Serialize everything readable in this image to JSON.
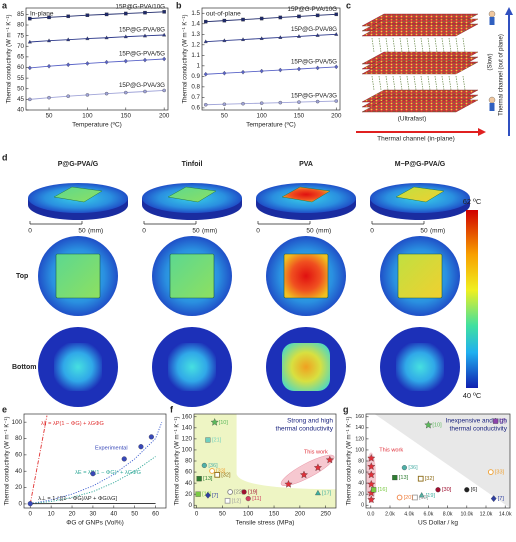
{
  "chart_data": [
    {
      "type": "line",
      "panel_label": "a",
      "annotation": "In-plane",
      "xlabel": "Temperature (ºC)",
      "ylabel": "Thermal conductivity (W m⁻¹ K⁻¹)",
      "x": [
        25,
        50,
        75,
        100,
        125,
        150,
        175,
        200
      ],
      "xlim": [
        20,
        205
      ],
      "xticks": [
        50,
        100,
        150,
        200
      ],
      "ylim": [
        40,
        88
      ],
      "yticks": [
        40,
        45,
        50,
        55,
        60,
        65,
        70,
        75,
        80,
        85
      ],
      "series": [
        {
          "name": "15P@G-PVA/10G",
          "color": "#1f2a6b",
          "marker": "square",
          "values": [
            83.0,
            83.6,
            84.1,
            84.6,
            85.0,
            85.4,
            85.8,
            86.2
          ]
        },
        {
          "name": "15P@G-PVA/8G",
          "color": "#2e3a8c",
          "marker": "triangle",
          "values": [
            72.0,
            72.6,
            73.1,
            73.6,
            74.0,
            74.5,
            74.9,
            75.3
          ]
        },
        {
          "name": "15P@G-PVA/5G",
          "color": "#5a64c8",
          "marker": "diamond",
          "values": [
            59.8,
            60.6,
            61.3,
            61.9,
            62.5,
            63.0,
            63.5,
            64.0
          ]
        },
        {
          "name": "15P@G-PVA/3G",
          "color": "#a0a4d8",
          "marker": "circle",
          "values": [
            45.0,
            45.8,
            46.5,
            47.1,
            47.7,
            48.2,
            48.7,
            49.2
          ]
        }
      ]
    },
    {
      "type": "line",
      "panel_label": "b",
      "annotation": "out-of-plane",
      "xlabel": "Temperature (ºC)",
      "ylabel": "Thermal conductivity (W m⁻¹ K⁻¹)",
      "x": [
        25,
        50,
        75,
        100,
        125,
        150,
        175,
        200
      ],
      "xlim": [
        20,
        205
      ],
      "xticks": [
        50,
        100,
        150,
        200
      ],
      "ylim": [
        0.58,
        1.55
      ],
      "yticks": [
        0.6,
        0.7,
        0.8,
        0.9,
        1.0,
        1.1,
        1.2,
        1.3,
        1.4,
        1.5
      ],
      "series": [
        {
          "name": "15P@G-PVA/10G",
          "color": "#1f2a6b",
          "marker": "square",
          "values": [
            1.42,
            1.43,
            1.44,
            1.45,
            1.46,
            1.47,
            1.48,
            1.49
          ]
        },
        {
          "name": "15P@G-PVA/8G",
          "color": "#2e3a8c",
          "marker": "triangle",
          "values": [
            1.23,
            1.24,
            1.25,
            1.26,
            1.27,
            1.28,
            1.29,
            1.3
          ]
        },
        {
          "name": "15P@G-PVA/5G",
          "color": "#5a64c8",
          "marker": "diamond",
          "values": [
            0.92,
            0.93,
            0.94,
            0.95,
            0.96,
            0.97,
            0.98,
            0.99
          ]
        },
        {
          "name": "15P@G-PVA/3G",
          "color": "#a0a4d8",
          "marker": "circle",
          "values": [
            0.63,
            0.635,
            0.64,
            0.645,
            0.65,
            0.655,
            0.66,
            0.665
          ]
        }
      ]
    },
    {
      "type": "scatter",
      "panel_label": "e",
      "xlabel": "ΦG of GNPs (Vol%)",
      "ylabel": "Thermal conductivity (W m⁻¹ K⁻¹)",
      "xlim": [
        -3,
        65
      ],
      "xticks": [
        0,
        10,
        20,
        30,
        40,
        50,
        60
      ],
      "ylim": [
        -5,
        110
      ],
      "yticks": [
        0,
        20,
        40,
        60,
        80,
        100
      ],
      "series": [
        {
          "name": "λ∥ = λP(1 − ΦG) + λGΦG",
          "color": "#e03030",
          "style": "dashdot",
          "x": [
            0,
            8
          ],
          "values": [
            0.3,
            108
          ]
        },
        {
          "color": "#4060d0",
          "style": "dotted",
          "x": [
            0,
            10,
            20,
            30,
            40,
            50,
            60,
            63
          ],
          "values": [
            0.3,
            5,
            12,
            22,
            36,
            55,
            80,
            100
          ]
        },
        {
          "name": "λE = λP(1 − ΦG)ⁿ + λGΦG",
          "color": "#30a898",
          "style": "dotted",
          "x": [
            0,
            10,
            20,
            30,
            40,
            50,
            60
          ],
          "values": [
            0.3,
            3,
            8,
            15,
            26,
            40,
            58
          ]
        },
        {
          "name": "λ⊥ = 1 / [(1 − ΦG)/λP + ΦG/λG]",
          "color": "#222222",
          "style": "solid",
          "x": [
            0,
            60
          ],
          "values": [
            0.3,
            0.6
          ]
        },
        {
          "name": "Experimental",
          "color": "#3848b8",
          "style": "markers",
          "marker": "circle",
          "x": [
            0,
            30,
            45,
            53,
            58
          ],
          "values": [
            0.3,
            37,
            55,
            70,
            82
          ]
        }
      ]
    },
    {
      "type": "scatter",
      "panel_label": "f",
      "xlabel": "Tensile stress (MPa)",
      "ylabel": "Thermal conductivity (W m⁻¹ K⁻¹)",
      "annotation": [
        "Strong and high",
        "thermal conductivity"
      ],
      "xlim": [
        -5,
        270
      ],
      "xticks": [
        0,
        50,
        100,
        150,
        200,
        250
      ],
      "ylim": [
        -5,
        165
      ],
      "yticks": [
        0,
        20,
        40,
        60,
        80,
        100,
        120,
        140,
        160
      ],
      "series": [
        {
          "name": "This work",
          "color": "#e0303a",
          "marker": "star",
          "x": [
            178,
            208,
            235,
            258
          ],
          "values": [
            38,
            55,
            68,
            82
          ]
        },
        {
          "name": "[10]",
          "color": "#5cb85c",
          "marker": "star",
          "x": [
            35
          ],
          "values": [
            150
          ]
        },
        {
          "name": "[21]",
          "color": "#6fcfbf",
          "marker": "square",
          "x": [
            22
          ],
          "values": [
            118
          ]
        },
        {
          "name": "[36]",
          "color": "#4fb0a8",
          "marker": "circle",
          "x": [
            15
          ],
          "values": [
            72
          ]
        },
        {
          "name": "[33]",
          "color": "#f0a030",
          "marker": "circle",
          "open": true,
          "x": [
            30
          ],
          "values": [
            62
          ]
        },
        {
          "name": "[32]",
          "color": "#8b6914",
          "marker": "square",
          "open": true,
          "x": [
            40
          ],
          "values": [
            55
          ]
        },
        {
          "name": "[13]",
          "color": "#2e7d32",
          "marker": "square",
          "x": [
            5
          ],
          "values": [
            48
          ]
        },
        {
          "name": "[16]",
          "color": "#7ac943",
          "marker": "square",
          "x": [
            3
          ],
          "values": [
            20
          ]
        },
        {
          "name": "[7]",
          "color": "#3040a0",
          "marker": "diamond",
          "x": [
            22
          ],
          "values": [
            18
          ]
        },
        {
          "name": "[22]",
          "color": "#808080",
          "marker": "circle",
          "open": true,
          "x": [
            65
          ],
          "values": [
            24
          ]
        },
        {
          "name": "[12]",
          "color": "#9e9e9e",
          "marker": "square",
          "open": true,
          "x": [
            60
          ],
          "values": [
            8
          ]
        },
        {
          "name": "[19]",
          "color": "#a01030",
          "marker": "circle",
          "x": [
            92
          ],
          "values": [
            24
          ]
        },
        {
          "name": "[11]",
          "color": "#d04060",
          "marker": "circle",
          "x": [
            100
          ],
          "values": [
            12
          ]
        },
        {
          "name": "[17]",
          "color": "#40b0a0",
          "marker": "triangle",
          "x": [
            235
          ],
          "values": [
            22
          ]
        }
      ]
    },
    {
      "type": "scatter",
      "panel_label": "g",
      "xlabel": "US Dollar / kg",
      "ylabel": "Thermal conductivity (W m⁻¹ K⁻¹)",
      "annotation": [
        "Inexpensive and high",
        "thermal conductivity"
      ],
      "xlim": [
        -500,
        14500
      ],
      "xticks": [
        {
          "value": 0,
          "label": "0.0"
        },
        {
          "value": 2000,
          "label": "2.0k"
        },
        {
          "value": 4000,
          "label": "4.0k"
        },
        {
          "value": 6000,
          "label": "6.0k"
        },
        {
          "value": 8000,
          "label": "8.0k"
        },
        {
          "value": 10000,
          "label": "10.0k"
        },
        {
          "value": 12000,
          "label": "12.0k"
        },
        {
          "value": 14000,
          "label": "14.0k"
        }
      ],
      "ylim": [
        -5,
        165
      ],
      "yticks": [
        0,
        20,
        40,
        60,
        80,
        100,
        120,
        140,
        160
      ],
      "series": [
        {
          "name": "This work",
          "color": "#e0303a",
          "marker": "star",
          "x": [
            50,
            50,
            50,
            50,
            50,
            50
          ],
          "values": [
            10,
            22,
            38,
            55,
            70,
            85
          ]
        },
        {
          "name": "[2]",
          "color": "#8e44ad",
          "marker": "square",
          "x": [
            13000
          ],
          "values": [
            152
          ]
        },
        {
          "name": "[10]",
          "color": "#5cb85c",
          "marker": "star",
          "x": [
            6000
          ],
          "values": [
            145
          ]
        },
        {
          "name": "[36]",
          "color": "#4fb0a8",
          "marker": "circle",
          "x": [
            3500
          ],
          "values": [
            68
          ]
        },
        {
          "name": "[13]",
          "color": "#2e7d32",
          "marker": "square",
          "x": [
            2500
          ],
          "values": [
            50
          ]
        },
        {
          "name": "[32]",
          "color": "#8b6914",
          "marker": "square",
          "open": true,
          "x": [
            5200
          ],
          "values": [
            48
          ]
        },
        {
          "name": "[33]",
          "color": "#f0a030",
          "marker": "circle",
          "open": true,
          "x": [
            12500
          ],
          "values": [
            60
          ]
        },
        {
          "name": "[30]",
          "color": "#a01030",
          "marker": "circle",
          "x": [
            7000
          ],
          "values": [
            28
          ]
        },
        {
          "name": "[6]",
          "color": "#222222",
          "marker": "circle",
          "x": [
            10000
          ],
          "values": [
            28
          ]
        },
        {
          "name": "[7]",
          "color": "#3040a0",
          "marker": "diamond",
          "x": [
            12800
          ],
          "values": [
            12
          ]
        },
        {
          "name": "[19]",
          "color": "#40b0a0",
          "marker": "triangle",
          "x": [
            5300
          ],
          "values": [
            18
          ]
        },
        {
          "name": "[12]",
          "color": "#9e9e9e",
          "marker": "square",
          "open": true,
          "x": [
            4600
          ],
          "values": [
            14
          ]
        },
        {
          "name": "[20]",
          "color": "#f08040",
          "marker": "circle",
          "open": true,
          "x": [
            3000
          ],
          "values": [
            14
          ]
        },
        {
          "name": "[16]",
          "color": "#7ac943",
          "marker": "square",
          "x": [
            300
          ],
          "values": [
            28
          ]
        }
      ]
    }
  ],
  "diagram_c": {
    "panel_label": "c",
    "in_plane": "Thermal channel (in-plane)",
    "out_of_plane": "Thermal channel (out of plane)",
    "fast": "(Ultrafast)",
    "slow": "(Slow)"
  },
  "thermal_d": {
    "panel_label": "d",
    "columns": [
      "P@G-PVA/G",
      "Tinfoil",
      "PVA",
      "M−P@G-PVA/G"
    ],
    "rows": [
      "Top",
      "Bottom"
    ],
    "scale": {
      "start": "0",
      "end": "50",
      "unit": "(mm)"
    },
    "colorbar": {
      "max": "62 ºC",
      "min": "40 ºC"
    }
  }
}
